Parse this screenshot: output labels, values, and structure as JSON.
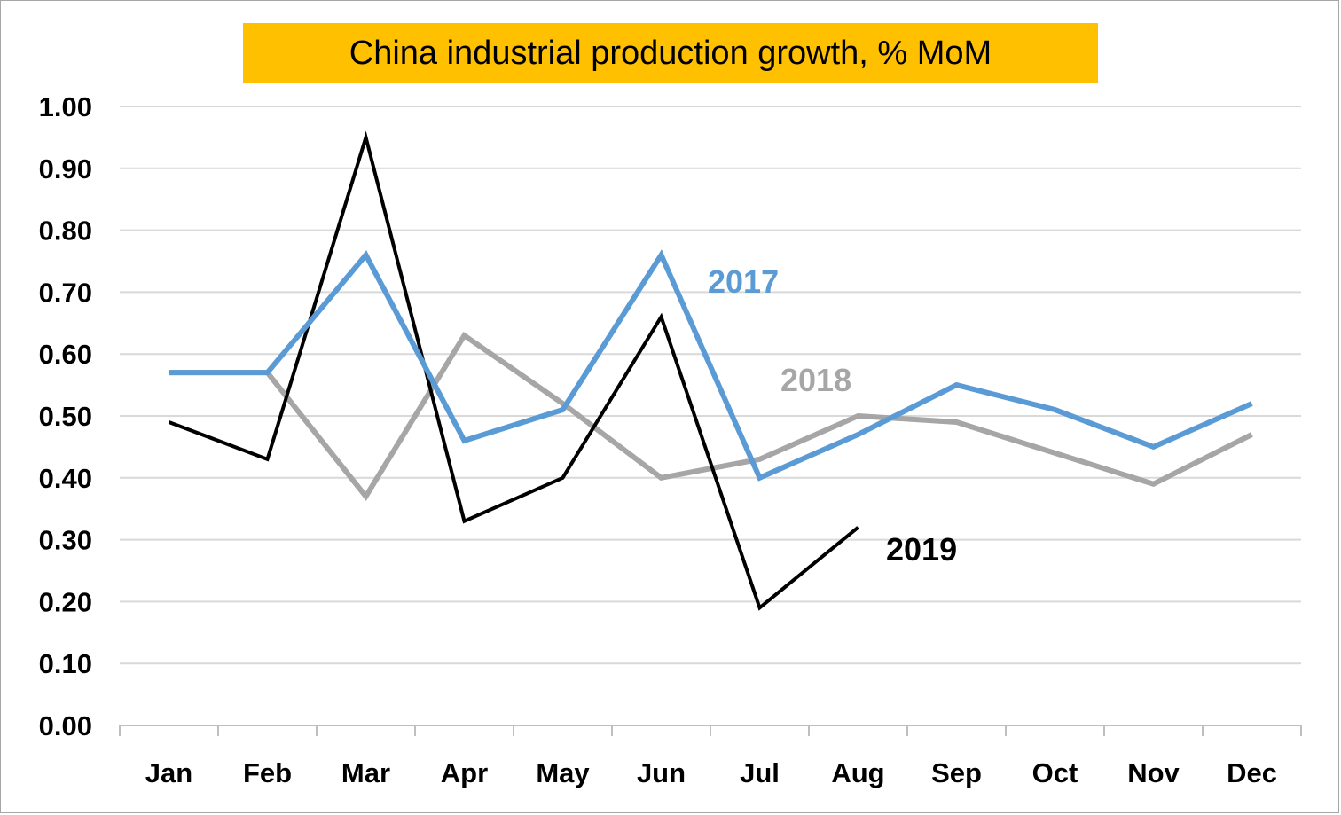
{
  "chart_data": {
    "type": "line",
    "title": "China industrial production growth, % MoM",
    "xlabel": "",
    "ylabel": "",
    "categories": [
      "Jan",
      "Feb",
      "Mar",
      "Apr",
      "May",
      "Jun",
      "Jul",
      "Aug",
      "Sep",
      "Oct",
      "Nov",
      "Dec"
    ],
    "y_ticks": [
      "0.00",
      "0.10",
      "0.20",
      "0.30",
      "0.40",
      "0.50",
      "0.60",
      "0.70",
      "0.80",
      "0.90",
      "1.00"
    ],
    "ylim": [
      0,
      1.0
    ],
    "grid": "horizontal",
    "legend": "none",
    "series": [
      {
        "name": "2018",
        "color": "#a6a6a6",
        "values": [
          0.57,
          0.57,
          0.37,
          0.63,
          0.52,
          0.4,
          0.43,
          0.5,
          0.49,
          0.44,
          0.39,
          0.47
        ]
      },
      {
        "name": "2019",
        "color": "#000000",
        "values": [
          0.49,
          0.43,
          0.95,
          0.33,
          0.4,
          0.66,
          0.19,
          0.32,
          null,
          null,
          null,
          null
        ]
      },
      {
        "name": "2017",
        "color": "#5b9bd5",
        "values": [
          0.57,
          0.57,
          0.76,
          0.46,
          0.51,
          0.76,
          0.4,
          0.47,
          0.55,
          0.51,
          0.45,
          0.52
        ]
      }
    ]
  }
}
